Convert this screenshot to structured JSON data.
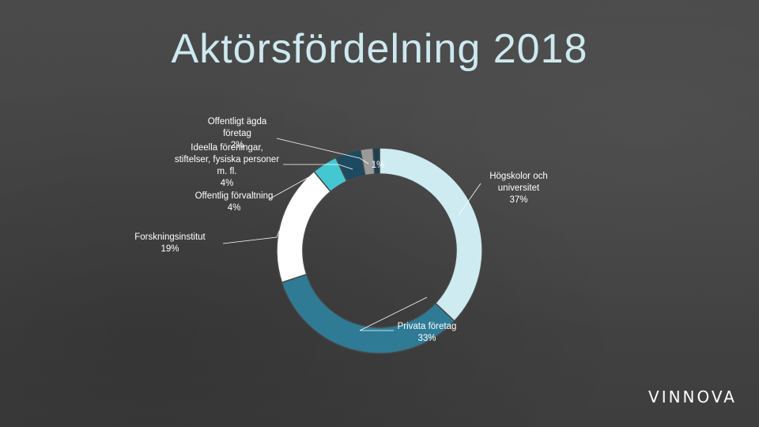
{
  "title": "Aktörsfördelning 2018",
  "logo": "VINNOVA",
  "chart_data": {
    "type": "pie",
    "donut": true,
    "slices": [
      {
        "label": "Högskolor och universitet",
        "value": 37,
        "pct_label": "37%",
        "color": "#cdebf0"
      },
      {
        "label": "Privata företag",
        "value": 33,
        "pct_label": "33%",
        "color": "#2f7b96"
      },
      {
        "label": "Forskningsinstitut",
        "value": 19,
        "pct_label": "19%",
        "color": "#ffffff"
      },
      {
        "label": "Offentlig förvaltning",
        "value": 4,
        "pct_label": "4%",
        "color": "#45c7d2"
      },
      {
        "label": "Ideella föreningar, stiftelser, fysiska personer m. fl.",
        "value": 4,
        "pct_label": "4%",
        "color": "#1c4a60"
      },
      {
        "label": "Offentligt ägda företag",
        "value": 2,
        "pct_label": "2%",
        "color": "#9a9a9a"
      },
      {
        "label": "",
        "value": 1,
        "pct_label": "1%",
        "color": "#1d3f52"
      }
    ]
  }
}
